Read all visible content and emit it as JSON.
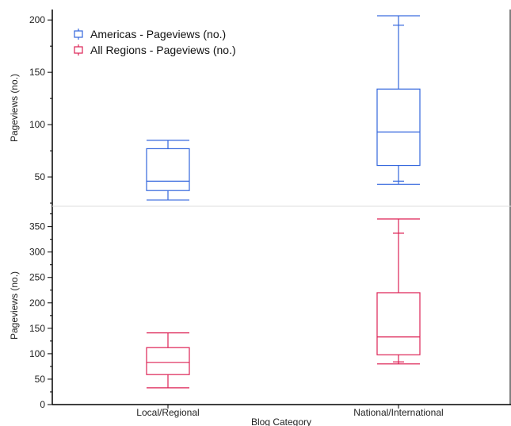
{
  "chart_data": {
    "type": "boxplot",
    "xlabel": "Blog Category",
    "categories": [
      "Local/Regional",
      "National/International"
    ],
    "legend": [
      {
        "label": "Americas - Pageviews (no.)",
        "color": "#3366dd"
      },
      {
        "label": "All Regions - Pageviews (no.)",
        "color": "#dd2255"
      }
    ],
    "panels": [
      {
        "name": "Americas - Pageviews (no.)",
        "ylabel": "Pageviews (no.)",
        "color": "#3366dd",
        "ylim": [
          22,
          210
        ],
        "yticks": [
          50,
          100,
          150,
          200
        ],
        "boxes": [
          {
            "category": "Local/Regional",
            "min": 28,
            "q1": 37,
            "median": 46,
            "q3": 77,
            "max": 85,
            "mean": null
          },
          {
            "category": "National/International",
            "min": 43,
            "q1": 61,
            "median": 93,
            "q3": 134,
            "max": 204,
            "mean": 195,
            "mean_low": 46
          }
        ]
      },
      {
        "name": "All Regions - Pageviews (no.)",
        "ylabel": "Pageviews (no.)",
        "color": "#dd2255",
        "ylim": [
          0,
          390
        ],
        "yticks": [
          0,
          50,
          100,
          150,
          200,
          250,
          300,
          350
        ],
        "boxes": [
          {
            "category": "Local/Regional",
            "min": 33,
            "q1": 59,
            "median": 83,
            "q3": 112,
            "max": 141,
            "mean": null
          },
          {
            "category": "National/International",
            "min": 80,
            "q1": 98,
            "median": 133,
            "q3": 220,
            "max": 365,
            "mean": 337,
            "mean_low": 84
          }
        ]
      }
    ]
  }
}
